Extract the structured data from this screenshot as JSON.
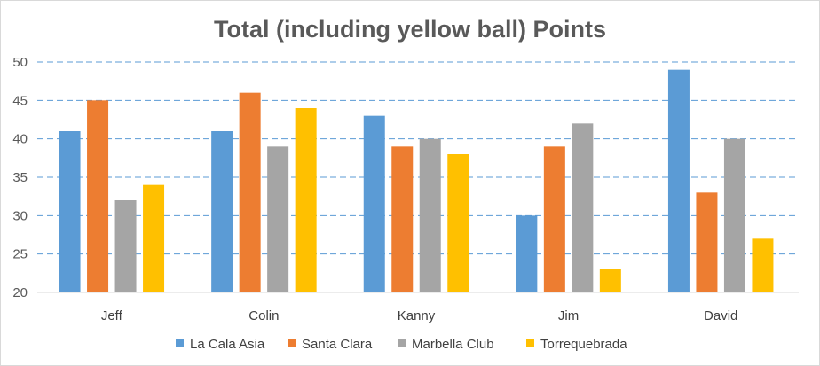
{
  "chart_data": {
    "type": "bar",
    "title": "Total (including yellow ball) Points",
    "xlabel": "",
    "ylabel": "",
    "categories": [
      "Jeff",
      "Colin",
      "Kanny",
      "Jim",
      "David"
    ],
    "series": [
      {
        "name": "La Cala Asia",
        "color": "#5b9bd5",
        "values": [
          41,
          41,
          43,
          30,
          49
        ]
      },
      {
        "name": "Santa Clara",
        "color": "#ed7d31",
        "values": [
          45,
          46,
          39,
          39,
          33
        ]
      },
      {
        "name": "Marbella Club",
        "color": "#a5a5a5",
        "values": [
          32,
          39,
          40,
          42,
          40
        ]
      },
      {
        "name": "Torrequebrada",
        "color": "#ffc000",
        "values": [
          34,
          44,
          38,
          23,
          27
        ]
      }
    ],
    "ylim": [
      20,
      50
    ],
    "yticks": [
      "20",
      "25",
      "30",
      "35",
      "40",
      "45",
      "50"
    ],
    "grid": true,
    "grid_color": "#5b9bd5",
    "legend_position": "bottom"
  }
}
